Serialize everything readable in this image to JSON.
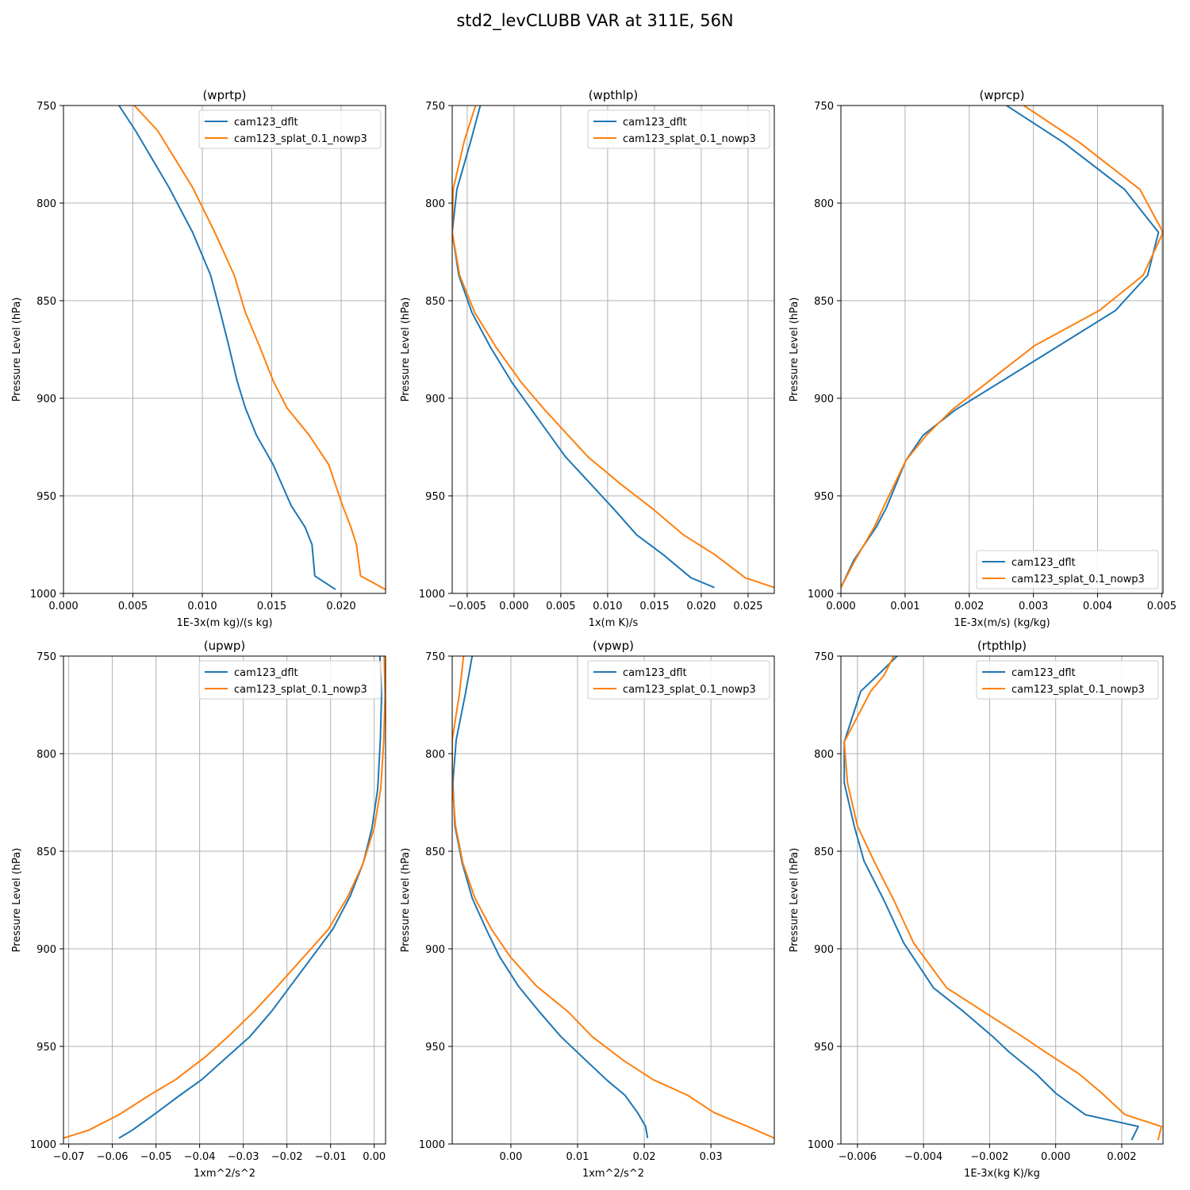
{
  "figure": {
    "title": "std2_levCLUBB VAR at 311E, 56N"
  },
  "colors": {
    "series_0": "#1f77b4",
    "series_1": "#ff7f0e",
    "grid": "#b0b0b0",
    "axis": "#000000"
  },
  "chart_data": [
    {
      "type": "line",
      "title": "(wprtp)",
      "xlabel": "1E-3x(m kg)/(s kg)",
      "ylabel": "Pressure Level (hPa)",
      "xlim": [
        0.0,
        0.0232
      ],
      "ylim": [
        1000,
        750
      ],
      "xticks": [
        0.0,
        0.005,
        0.01,
        0.015,
        0.02
      ],
      "xtick_labels": [
        "0.000",
        "0.005",
        "0.010",
        "0.015",
        "0.020"
      ],
      "yticks": [
        750,
        800,
        850,
        900,
        950,
        1000
      ],
      "ytick_labels": [
        "750",
        "800",
        "850",
        "900",
        "950",
        "1000"
      ],
      "grid": true,
      "legend_loc": "upper right",
      "series": [
        {
          "name": "cam123_dflt",
          "x": [
            0.004,
            0.0052,
            0.0076,
            0.0093,
            0.0106,
            0.0113,
            0.0119,
            0.0125,
            0.0131,
            0.0139,
            0.0151,
            0.0164,
            0.0174,
            0.0179,
            0.0181,
            0.0196
          ],
          "y": [
            750,
            763,
            792,
            815,
            837,
            856,
            873,
            891,
            905,
            919,
            934,
            955,
            966,
            975,
            991,
            998
          ]
        },
        {
          "name": "cam123_splat_0.1_nowp3",
          "x": [
            0.0051,
            0.0068,
            0.0093,
            0.0109,
            0.0123,
            0.0131,
            0.0141,
            0.0151,
            0.0161,
            0.0177,
            0.0191,
            0.0201,
            0.0207,
            0.0211,
            0.0214,
            0.0232
          ],
          "y": [
            750,
            763,
            792,
            815,
            837,
            856,
            873,
            891,
            905,
            919,
            934,
            955,
            966,
            975,
            991,
            998
          ]
        }
      ]
    },
    {
      "type": "line",
      "title": "(wpthlp)",
      "xlabel": "1x(m K)/s",
      "ylabel": "Pressure Level (hPa)",
      "xlim": [
        -0.0066,
        0.0278
      ],
      "ylim": [
        1000,
        750
      ],
      "xticks": [
        -0.005,
        0.0,
        0.005,
        0.01,
        0.015,
        0.02,
        0.025
      ],
      "xtick_labels": [
        "−0.005",
        "0.000",
        "0.005",
        "0.010",
        "0.015",
        "0.020",
        "0.025"
      ],
      "yticks": [
        750,
        800,
        850,
        900,
        950,
        1000
      ],
      "ytick_labels": [
        "750",
        "800",
        "850",
        "900",
        "950",
        "1000"
      ],
      "grid": true,
      "legend_loc": "upper right",
      "series": [
        {
          "name": "cam123_dflt",
          "x": [
            -0.0036,
            -0.0046,
            -0.0061,
            -0.0066,
            -0.0059,
            -0.0045,
            -0.0025,
            -0.0002,
            0.0019,
            0.0055,
            0.0082,
            0.0107,
            0.0131,
            0.0159,
            0.0189,
            0.0214
          ],
          "y": [
            750,
            768,
            793,
            815,
            837,
            856,
            874,
            892,
            906,
            930,
            944,
            957,
            970,
            980,
            992,
            997
          ]
        },
        {
          "name": "cam123_splat_0.1_nowp3",
          "x": [
            -0.0041,
            -0.0053,
            -0.0065,
            -0.0066,
            -0.0058,
            -0.0042,
            -0.0019,
            0.0008,
            0.0033,
            0.0079,
            0.0114,
            0.0149,
            0.0181,
            0.0214,
            0.0247,
            0.0278
          ],
          "y": [
            750,
            768,
            793,
            815,
            837,
            856,
            874,
            892,
            906,
            930,
            944,
            957,
            970,
            980,
            992,
            997
          ]
        }
      ]
    },
    {
      "type": "line",
      "title": "(wprcp)",
      "xlabel": "1E-3x(m/s) (kg/kg)",
      "ylabel": "Pressure Level (hPa)",
      "xlim": [
        0.0,
        0.00502
      ],
      "ylim": [
        1000,
        750
      ],
      "xticks": [
        0.0,
        0.001,
        0.002,
        0.003,
        0.004,
        0.005
      ],
      "xtick_labels": [
        "0.000",
        "0.001",
        "0.002",
        "0.003",
        "0.004",
        "0.005"
      ],
      "yticks": [
        750,
        800,
        850,
        900,
        950,
        1000
      ],
      "ytick_labels": [
        "750",
        "800",
        "850",
        "900",
        "950",
        "1000"
      ],
      "grid": true,
      "legend_loc": "lower right",
      "series": [
        {
          "name": "cam123_dflt",
          "x": [
            0.00258,
            0.00347,
            0.00442,
            0.00495,
            0.00478,
            0.00428,
            0.0034,
            0.00178,
            0.00128,
            0.00101,
            0.00071,
            0.00055,
            0.0002,
            0.0
          ],
          "y": [
            750,
            769,
            793,
            815,
            837,
            855,
            873,
            906,
            919,
            932,
            956,
            966,
            983,
            997
          ]
        },
        {
          "name": "cam123_splat_0.1_nowp3",
          "x": [
            0.00285,
            0.00372,
            0.00466,
            0.00502,
            0.00471,
            0.00403,
            0.00302,
            0.00173,
            0.00133,
            0.00101,
            0.00066,
            0.00052,
            0.00022,
            0.0
          ],
          "y": [
            750,
            769,
            793,
            815,
            837,
            855,
            873,
            906,
            919,
            932,
            956,
            966,
            983,
            997
          ]
        }
      ]
    },
    {
      "type": "line",
      "title": "(upwp)",
      "xlabel": "1xm^2/s^2",
      "ylabel": "Pressure Level (hPa)",
      "xlim": [
        -0.0712,
        0.0026
      ],
      "ylim": [
        1000,
        750
      ],
      "xticks": [
        -0.07,
        -0.06,
        -0.05,
        -0.04,
        -0.03,
        -0.02,
        -0.01,
        0.0
      ],
      "xtick_labels": [
        "−0.07",
        "−0.06",
        "−0.05",
        "−0.04",
        "−0.03",
        "−0.02",
        "−0.01",
        "0.00"
      ],
      "yticks": [
        750,
        800,
        850,
        900,
        950,
        1000
      ],
      "ytick_labels": [
        "750",
        "800",
        "850",
        "900",
        "950",
        "1000"
      ],
      "grid": true,
      "legend_loc": "upper right",
      "series": [
        {
          "name": "cam123_dflt",
          "x": [
            0.0013,
            0.0017,
            0.0014,
            0.0008,
            -0.0005,
            -0.0025,
            -0.0055,
            -0.0095,
            -0.0145,
            -0.0195,
            -0.0235,
            -0.0285,
            -0.0335,
            -0.0395,
            -0.0445,
            -0.0505,
            -0.0555,
            -0.0585
          ],
          "y": [
            750,
            770,
            793,
            818,
            838,
            856,
            873,
            890,
            905,
            920,
            932,
            945,
            955,
            967,
            975,
            985,
            993,
            997
          ]
        },
        {
          "name": "cam123_splat_0.1_nowp3",
          "x": [
            0.0023,
            0.0025,
            0.0022,
            0.0015,
            0.0,
            -0.0025,
            -0.006,
            -0.0105,
            -0.0165,
            -0.0225,
            -0.0275,
            -0.0335,
            -0.0385,
            -0.0455,
            -0.0515,
            -0.0585,
            -0.0655,
            -0.0712
          ],
          "y": [
            750,
            770,
            793,
            818,
            838,
            856,
            873,
            890,
            905,
            920,
            932,
            945,
            955,
            967,
            975,
            985,
            993,
            997
          ]
        }
      ]
    },
    {
      "type": "line",
      "title": "(vpwp)",
      "xlabel": "1xm^2/s^2",
      "ylabel": "Pressure Level (hPa)",
      "xlim": [
        -0.0088,
        0.0395
      ],
      "ylim": [
        1000,
        750
      ],
      "xticks": [
        0.0,
        0.01,
        0.02,
        0.03
      ],
      "xtick_labels": [
        "0.00",
        "0.01",
        "0.02",
        "0.03"
      ],
      "yticks": [
        750,
        800,
        850,
        900,
        950,
        1000
      ],
      "ytick_labels": [
        "750",
        "800",
        "850",
        "900",
        "950",
        "1000"
      ],
      "grid": true,
      "legend_loc": "upper right",
      "series": [
        {
          "name": "cam123_dflt",
          "x": [
            -0.0058,
            -0.0068,
            -0.0082,
            -0.0087,
            -0.0084,
            -0.0073,
            -0.0058,
            -0.0037,
            -0.0017,
            0.0011,
            0.0042,
            0.0075,
            0.0112,
            0.0143,
            0.0171,
            0.019,
            0.0202,
            0.0205
          ],
          "y": [
            750,
            769,
            793,
            815,
            837,
            856,
            874,
            890,
            904,
            919,
            932,
            945,
            957,
            967,
            975,
            984,
            991,
            997
          ]
        },
        {
          "name": "cam123_splat_0.1_nowp3",
          "x": [
            -0.0071,
            -0.0077,
            -0.0088,
            -0.0088,
            -0.0083,
            -0.0072,
            -0.0054,
            -0.0029,
            -0.0001,
            0.0038,
            0.0085,
            0.0122,
            0.0168,
            0.0213,
            0.0265,
            0.0305,
            0.0355,
            0.0395
          ],
          "y": [
            750,
            769,
            793,
            815,
            837,
            856,
            874,
            890,
            904,
            919,
            932,
            945,
            957,
            967,
            975,
            984,
            991,
            997
          ]
        }
      ]
    },
    {
      "type": "line",
      "title": "(rtpthlp)",
      "xlabel": "1E-3x(kg K)/kg",
      "ylabel": "Pressure Level (hPa)",
      "xlim": [
        -0.0065,
        0.00325
      ],
      "ylim": [
        1000,
        750
      ],
      "xticks": [
        -0.006,
        -0.004,
        -0.002,
        0.0,
        0.002
      ],
      "xtick_labels": [
        "−0.006",
        "−0.004",
        "−0.002",
        "0.000",
        "0.002"
      ],
      "yticks": [
        750,
        800,
        850,
        900,
        950,
        1000
      ],
      "ytick_labels": [
        "750",
        "800",
        "850",
        "900",
        "950",
        "1000"
      ],
      "grid": true,
      "legend_loc": "upper right",
      "series": [
        {
          "name": "cam123_dflt",
          "x": [
            -0.0048,
            -0.0054,
            -0.0059,
            -0.0064,
            -0.0064,
            -0.0061,
            -0.0058,
            -0.0052,
            -0.0046,
            -0.0037,
            -0.0028,
            -0.0019,
            -0.0014,
            -0.0006,
            0.0,
            0.0009,
            0.0025,
            0.0023
          ],
          "y": [
            750,
            760,
            768,
            794,
            815,
            837,
            855,
            875,
            897,
            920,
            932,
            945,
            953,
            964,
            974,
            985,
            991,
            998
          ]
        },
        {
          "name": "cam123_splat_0.1_nowp3",
          "x": [
            -0.0049,
            -0.0052,
            -0.0056,
            -0.0064,
            -0.0063,
            -0.006,
            -0.0055,
            -0.0049,
            -0.0043,
            -0.0033,
            -0.0022,
            -0.001,
            -0.0003,
            0.0007,
            0.0014,
            0.0021,
            0.0032,
            0.0031
          ],
          "y": [
            750,
            760,
            768,
            794,
            815,
            837,
            855,
            875,
            897,
            920,
            932,
            945,
            953,
            964,
            974,
            985,
            991,
            998
          ]
        }
      ]
    }
  ]
}
